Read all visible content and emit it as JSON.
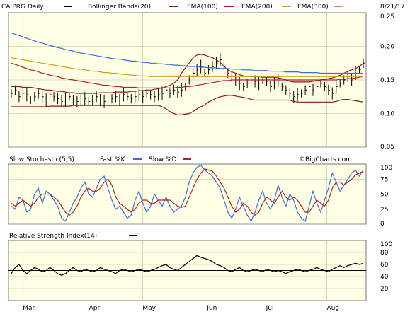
{
  "header": {
    "symbol": "CA:PRG Daily",
    "bollinger": "Bollinger Bands(20)",
    "ema100": "EMA(100)",
    "ema200": "EMA(200)",
    "ema300": "EMA(300)",
    "date": "8/21/17"
  },
  "stoch_header": {
    "label": "Slow Stochastic(5,5)",
    "fast": "Fast %K",
    "slow": "Slow %D"
  },
  "rsi_header": {
    "label": "Relative Strength Index(14)"
  },
  "watermark": "©BigCharts.com",
  "colors": {
    "plot_bg": "#ffffe6",
    "price": "#000000",
    "bollinger": "#8b1a1a",
    "ema100": "#b22222",
    "ema200": "#d4a017",
    "ema300": "#3a6fd8",
    "stoch_fast": "#3a6fd8",
    "stoch_slow": "#b22222",
    "rsi": "#000000",
    "grid": "#b8b8a0"
  },
  "chart_data": [
    {
      "type": "line",
      "panel": "price",
      "x_ticks": [
        "Mar",
        "Apr",
        "May",
        "Jun",
        "Jul",
        "Aug"
      ],
      "y_ticks": [
        "0.25",
        "0.20",
        "0.15",
        "0.10",
        "0.05"
      ],
      "ylim": [
        0.05,
        0.25
      ],
      "series": [
        {
          "name": "CA:PRG Daily",
          "kind": "ohlc",
          "values": [
            0.13,
            0.135,
            0.125,
            0.13,
            0.128,
            0.12,
            0.125,
            0.13,
            0.125,
            0.12,
            0.128,
            0.125,
            0.122,
            0.118,
            0.12,
            0.125,
            0.12,
            0.118,
            0.12,
            0.122,
            0.118,
            0.12,
            0.125,
            0.12,
            0.118,
            0.12,
            0.122,
            0.125,
            0.12,
            0.128,
            0.125,
            0.122,
            0.125,
            0.128,
            0.125,
            0.13,
            0.128,
            0.125,
            0.128,
            0.13,
            0.135,
            0.13,
            0.135,
            0.132,
            0.135,
            0.14,
            0.15,
            0.16,
            0.165,
            0.17,
            0.16,
            0.165,
            0.17,
            0.175,
            0.18,
            0.17,
            0.16,
            0.155,
            0.15,
            0.145,
            0.14,
            0.145,
            0.15,
            0.148,
            0.145,
            0.15,
            0.148,
            0.14,
            0.145,
            0.15,
            0.14,
            0.135,
            0.13,
            0.125,
            0.128,
            0.13,
            0.135,
            0.14,
            0.135,
            0.14,
            0.145,
            0.14,
            0.135,
            0.13,
            0.14,
            0.145,
            0.15,
            0.155,
            0.15,
            0.16,
            0.165,
            0.175
          ]
        },
        {
          "name": "Bollinger Bands(20) upper",
          "values": [
            0.14,
            0.14,
            0.14,
            0.139,
            0.139,
            0.139,
            0.138,
            0.137,
            0.136,
            0.135,
            0.135,
            0.134,
            0.133,
            0.133,
            0.132,
            0.131,
            0.131,
            0.13,
            0.13,
            0.13,
            0.13,
            0.13,
            0.13,
            0.131,
            0.131,
            0.131,
            0.131,
            0.132,
            0.132,
            0.132,
            0.132,
            0.133,
            0.133,
            0.134,
            0.134,
            0.135,
            0.135,
            0.136,
            0.137,
            0.138,
            0.14,
            0.142,
            0.145,
            0.15,
            0.16,
            0.168,
            0.175,
            0.183,
            0.187,
            0.188,
            0.187,
            0.185,
            0.183,
            0.18,
            0.176,
            0.17,
            0.165,
            0.162,
            0.16,
            0.158,
            0.156,
            0.155,
            0.155,
            0.155,
            0.155,
            0.154,
            0.154,
            0.154,
            0.154,
            0.153,
            0.152,
            0.15,
            0.148,
            0.147,
            0.147,
            0.147,
            0.147,
            0.147,
            0.148,
            0.149,
            0.15,
            0.151,
            0.152,
            0.153,
            0.155,
            0.157,
            0.16,
            0.163,
            0.165,
            0.167,
            0.17,
            0.175
          ]
        },
        {
          "name": "Bollinger Bands(20) lower",
          "values": [
            0.11,
            0.11,
            0.11,
            0.11,
            0.11,
            0.11,
            0.11,
            0.11,
            0.11,
            0.11,
            0.111,
            0.111,
            0.111,
            0.111,
            0.111,
            0.111,
            0.112,
            0.112,
            0.112,
            0.112,
            0.112,
            0.112,
            0.112,
            0.112,
            0.112,
            0.112,
            0.112,
            0.112,
            0.112,
            0.112,
            0.112,
            0.112,
            0.112,
            0.112,
            0.112,
            0.112,
            0.112,
            0.112,
            0.112,
            0.11,
            0.107,
            0.103,
            0.1,
            0.098,
            0.098,
            0.099,
            0.1,
            0.103,
            0.107,
            0.11,
            0.113,
            0.117,
            0.12,
            0.123,
            0.125,
            0.126,
            0.127,
            0.127,
            0.126,
            0.125,
            0.124,
            0.123,
            0.121,
            0.12,
            0.12,
            0.12,
            0.12,
            0.12,
            0.12,
            0.12,
            0.12,
            0.12,
            0.12,
            0.118,
            0.117,
            0.117,
            0.117,
            0.117,
            0.117,
            0.117,
            0.117,
            0.117,
            0.117,
            0.117,
            0.118,
            0.12,
            0.121,
            0.121,
            0.12,
            0.119,
            0.118,
            0.117
          ]
        },
        {
          "name": "EMA(100)",
          "values": [
            0.175,
            0.173,
            0.171,
            0.169,
            0.167,
            0.165,
            0.164,
            0.162,
            0.16,
            0.159,
            0.157,
            0.156,
            0.155,
            0.153,
            0.152,
            0.151,
            0.15,
            0.149,
            0.148,
            0.147,
            0.146,
            0.145,
            0.144,
            0.143,
            0.142,
            0.142,
            0.141,
            0.14,
            0.14,
            0.139,
            0.139,
            0.139,
            0.139,
            0.138,
            0.138,
            0.138,
            0.138,
            0.138,
            0.138,
            0.138,
            0.138,
            0.138,
            0.138,
            0.139,
            0.139,
            0.14,
            0.14,
            0.141,
            0.142,
            0.143,
            0.144,
            0.145,
            0.146,
            0.147,
            0.148,
            0.149,
            0.149,
            0.15,
            0.15,
            0.15,
            0.15,
            0.15,
            0.15,
            0.15,
            0.15,
            0.15,
            0.15,
            0.15,
            0.15,
            0.15,
            0.15,
            0.15,
            0.15,
            0.15,
            0.15,
            0.15,
            0.15,
            0.15,
            0.15,
            0.15,
            0.15,
            0.15,
            0.15,
            0.15,
            0.15,
            0.151,
            0.151,
            0.152,
            0.152,
            0.153,
            0.154,
            0.155
          ]
        },
        {
          "name": "EMA(200)",
          "values": [
            0.183,
            0.182,
            0.181,
            0.18,
            0.179,
            0.178,
            0.177,
            0.176,
            0.175,
            0.174,
            0.173,
            0.172,
            0.171,
            0.17,
            0.169,
            0.168,
            0.167,
            0.166,
            0.166,
            0.165,
            0.164,
            0.163,
            0.163,
            0.162,
            0.161,
            0.161,
            0.16,
            0.16,
            0.159,
            0.158,
            0.158,
            0.157,
            0.157,
            0.156,
            0.156,
            0.156,
            0.155,
            0.155,
            0.155,
            0.155,
            0.155,
            0.155,
            0.155,
            0.155,
            0.155,
            0.155,
            0.155,
            0.155,
            0.155,
            0.155,
            0.155,
            0.155,
            0.155,
            0.155,
            0.155,
            0.155,
            0.155,
            0.155,
            0.155,
            0.155,
            0.155,
            0.155,
            0.155,
            0.155,
            0.155,
            0.155,
            0.155,
            0.155,
            0.155,
            0.155,
            0.155,
            0.155,
            0.155,
            0.155,
            0.155,
            0.155,
            0.155,
            0.155,
            0.155,
            0.155,
            0.155,
            0.155,
            0.155,
            0.155,
            0.155,
            0.155,
            0.155,
            0.155,
            0.155,
            0.155,
            0.155,
            0.155
          ]
        },
        {
          "name": "EMA(300)",
          "values": [
            0.22,
            0.218,
            0.216,
            0.214,
            0.212,
            0.21,
            0.208,
            0.206,
            0.205,
            0.203,
            0.201,
            0.2,
            0.198,
            0.197,
            0.195,
            0.194,
            0.193,
            0.191,
            0.19,
            0.189,
            0.188,
            0.187,
            0.186,
            0.185,
            0.184,
            0.183,
            0.182,
            0.181,
            0.181,
            0.18,
            0.179,
            0.178,
            0.178,
            0.177,
            0.176,
            0.176,
            0.175,
            0.175,
            0.174,
            0.174,
            0.173,
            0.173,
            0.172,
            0.172,
            0.171,
            0.171,
            0.17,
            0.17,
            0.17,
            0.169,
            0.169,
            0.168,
            0.168,
            0.168,
            0.167,
            0.167,
            0.167,
            0.166,
            0.166,
            0.166,
            0.165,
            0.165,
            0.165,
            0.164,
            0.164,
            0.164,
            0.164,
            0.163,
            0.163,
            0.163,
            0.163,
            0.162,
            0.162,
            0.162,
            0.162,
            0.161,
            0.161,
            0.161,
            0.161,
            0.161,
            0.16,
            0.16,
            0.16,
            0.16,
            0.16,
            0.16,
            0.16,
            0.16,
            0.16,
            0.16,
            0.16,
            0.16
          ]
        }
      ]
    },
    {
      "type": "line",
      "panel": "stochastic",
      "y_ticks": [
        "100",
        "75",
        "50",
        "25",
        "0"
      ],
      "ylim": [
        0,
        100
      ],
      "series": [
        {
          "name": "Fast %K",
          "values": [
            30,
            25,
            45,
            40,
            20,
            25,
            50,
            60,
            35,
            55,
            50,
            40,
            30,
            10,
            5,
            20,
            35,
            45,
            60,
            70,
            50,
            45,
            60,
            75,
            80,
            60,
            40,
            25,
            30,
            20,
            10,
            15,
            40,
            55,
            35,
            20,
            30,
            50,
            40,
            30,
            45,
            30,
            20,
            25,
            30,
            45,
            70,
            85,
            95,
            98,
            90,
            85,
            80,
            70,
            60,
            40,
            20,
            10,
            25,
            45,
            30,
            15,
            5,
            20,
            40,
            55,
            35,
            25,
            40,
            65,
            45,
            30,
            50,
            40,
            20,
            10,
            5,
            30,
            55,
            35,
            20,
            40,
            60,
            85,
            70,
            55,
            65,
            75,
            85,
            90,
            80,
            90
          ]
        },
        {
          "name": "Slow %D",
          "values": [
            35,
            30,
            35,
            40,
            35,
            30,
            35,
            45,
            50,
            50,
            50,
            45,
            40,
            30,
            20,
            15,
            20,
            30,
            45,
            55,
            60,
            55,
            55,
            60,
            70,
            75,
            65,
            45,
            35,
            30,
            25,
            20,
            25,
            35,
            40,
            40,
            35,
            35,
            40,
            40,
            40,
            40,
            35,
            30,
            28,
            30,
            45,
            60,
            75,
            85,
            92,
            90,
            88,
            80,
            70,
            60,
            45,
            30,
            20,
            25,
            35,
            30,
            20,
            15,
            20,
            35,
            45,
            40,
            35,
            45,
            55,
            45,
            40,
            45,
            40,
            30,
            20,
            20,
            30,
            40,
            35,
            30,
            40,
            60,
            70,
            70,
            65,
            70,
            75,
            82,
            85,
            88
          ]
        }
      ]
    },
    {
      "type": "line",
      "panel": "rsi",
      "y_ticks": [
        "100",
        "80",
        "60",
        "40",
        "20"
      ],
      "ylim": [
        0,
        100
      ],
      "series": [
        {
          "name": "Relative Strength Index(14)",
          "values": [
            45,
            55,
            60,
            50,
            45,
            50,
            55,
            52,
            48,
            50,
            55,
            50,
            45,
            42,
            45,
            50,
            55,
            50,
            48,
            52,
            50,
            48,
            50,
            55,
            52,
            50,
            48,
            45,
            50,
            52,
            50,
            48,
            50,
            52,
            50,
            48,
            50,
            52,
            55,
            58,
            60,
            55,
            52,
            50,
            55,
            60,
            65,
            70,
            75,
            72,
            70,
            68,
            65,
            60,
            58,
            55,
            50,
            48,
            52,
            55,
            50,
            48,
            50,
            52,
            50,
            48,
            52,
            50,
            48,
            50,
            48,
            45,
            48,
            50,
            52,
            50,
            48,
            50,
            52,
            55,
            52,
            50,
            48,
            52,
            55,
            58,
            55,
            58,
            60,
            62,
            60,
            62
          ]
        }
      ]
    }
  ]
}
